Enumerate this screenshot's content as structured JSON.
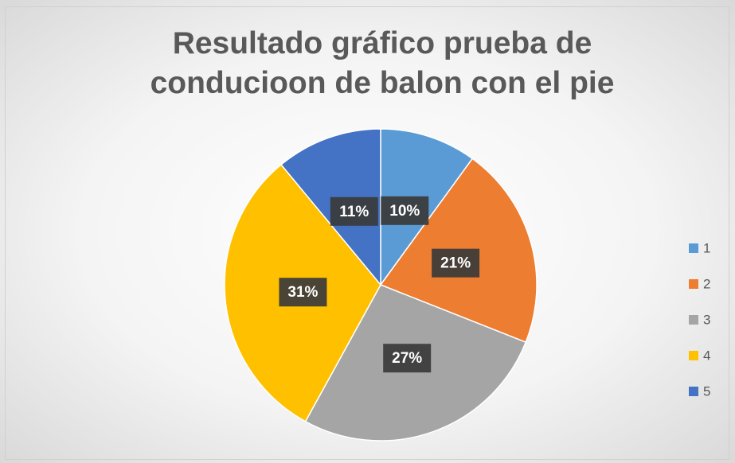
{
  "chart_data": {
    "type": "pie",
    "title": "Resultado gráfico prueba de conducioon de balon con el pie",
    "categories": [
      "1",
      "2",
      "3",
      "4",
      "5"
    ],
    "values": [
      10,
      21,
      27,
      31,
      11
    ],
    "value_labels": [
      "10%",
      "21%",
      "27%",
      "31%",
      "11%"
    ],
    "colors": [
      "#5b9bd5",
      "#ed7d31",
      "#a5a5a5",
      "#ffc000",
      "#4472c4"
    ],
    "legend": "right"
  }
}
